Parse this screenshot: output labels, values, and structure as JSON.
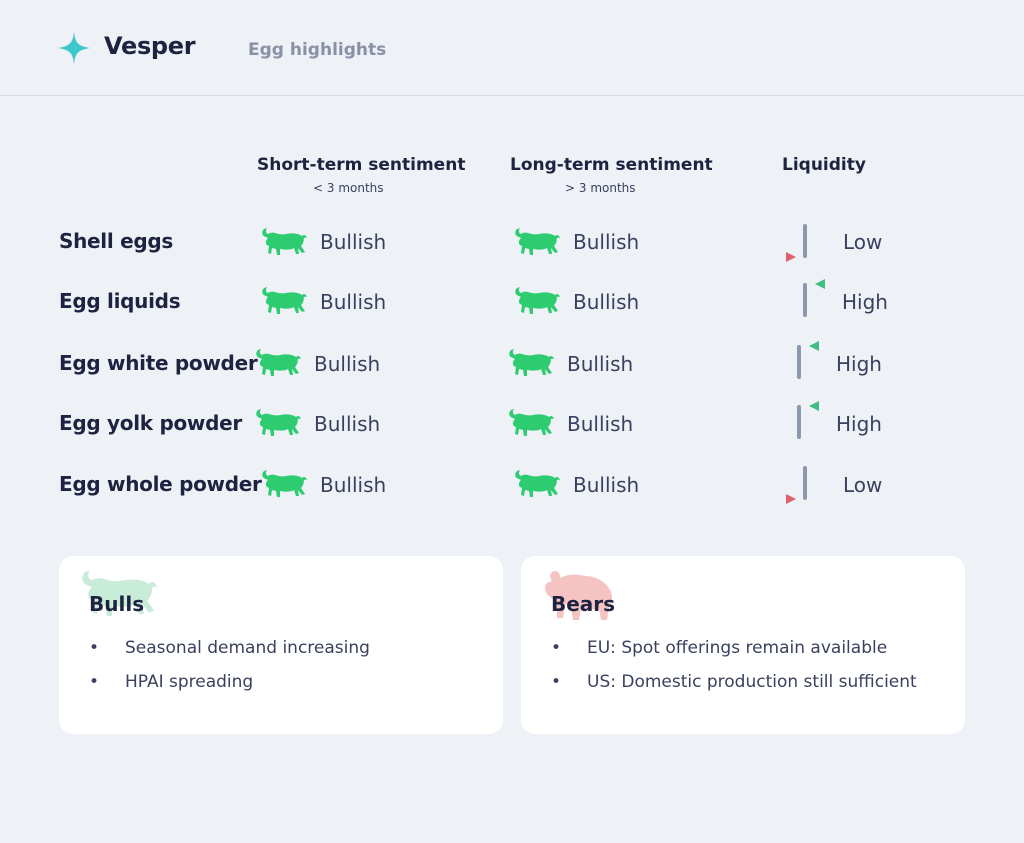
{
  "header": {
    "brand": "Vesper",
    "page_title": "Egg highlights",
    "logo_icon": "sparkle-icon",
    "accent_color": "#3cc8c8"
  },
  "columns": {
    "short_term": {
      "title": "Short-term sentiment",
      "subtitle": "< 3 months"
    },
    "long_term": {
      "title": "Long-term sentiment",
      "subtitle": "> 3 months"
    },
    "liquidity": {
      "title": "Liquidity"
    }
  },
  "rows": [
    {
      "label": "Shell eggs",
      "short_term": "Bullish",
      "long_term": "Bullish",
      "liquidity": "Low"
    },
    {
      "label": "Egg liquids",
      "short_term": "Bullish",
      "long_term": "Bullish",
      "liquidity": "High"
    },
    {
      "label": "Egg white powder",
      "short_term": "Bullish",
      "long_term": "Bullish",
      "liquidity": "High"
    },
    {
      "label": "Egg yolk powder",
      "short_term": "Bullish",
      "long_term": "Bullish",
      "liquidity": "High"
    },
    {
      "label": "Egg whole powder",
      "short_term": "Bullish",
      "long_term": "Bullish",
      "liquidity": "Low"
    }
  ],
  "cards": {
    "bulls": {
      "title": "Bulls",
      "icon": "bull-icon",
      "items": [
        "Seasonal demand increasing",
        "HPAI spreading"
      ]
    },
    "bears": {
      "title": "Bears",
      "icon": "bear-icon",
      "items": [
        "EU: Spot offerings remain available",
        "US: Domestic production still sufficient"
      ]
    }
  },
  "colors": {
    "bullish_green": "#2ecc71",
    "high_marker": "#3fbf7f",
    "low_marker": "#e0606e",
    "bear_pink": "#f6c3c3",
    "bull_mint": "#c9ecd9"
  }
}
